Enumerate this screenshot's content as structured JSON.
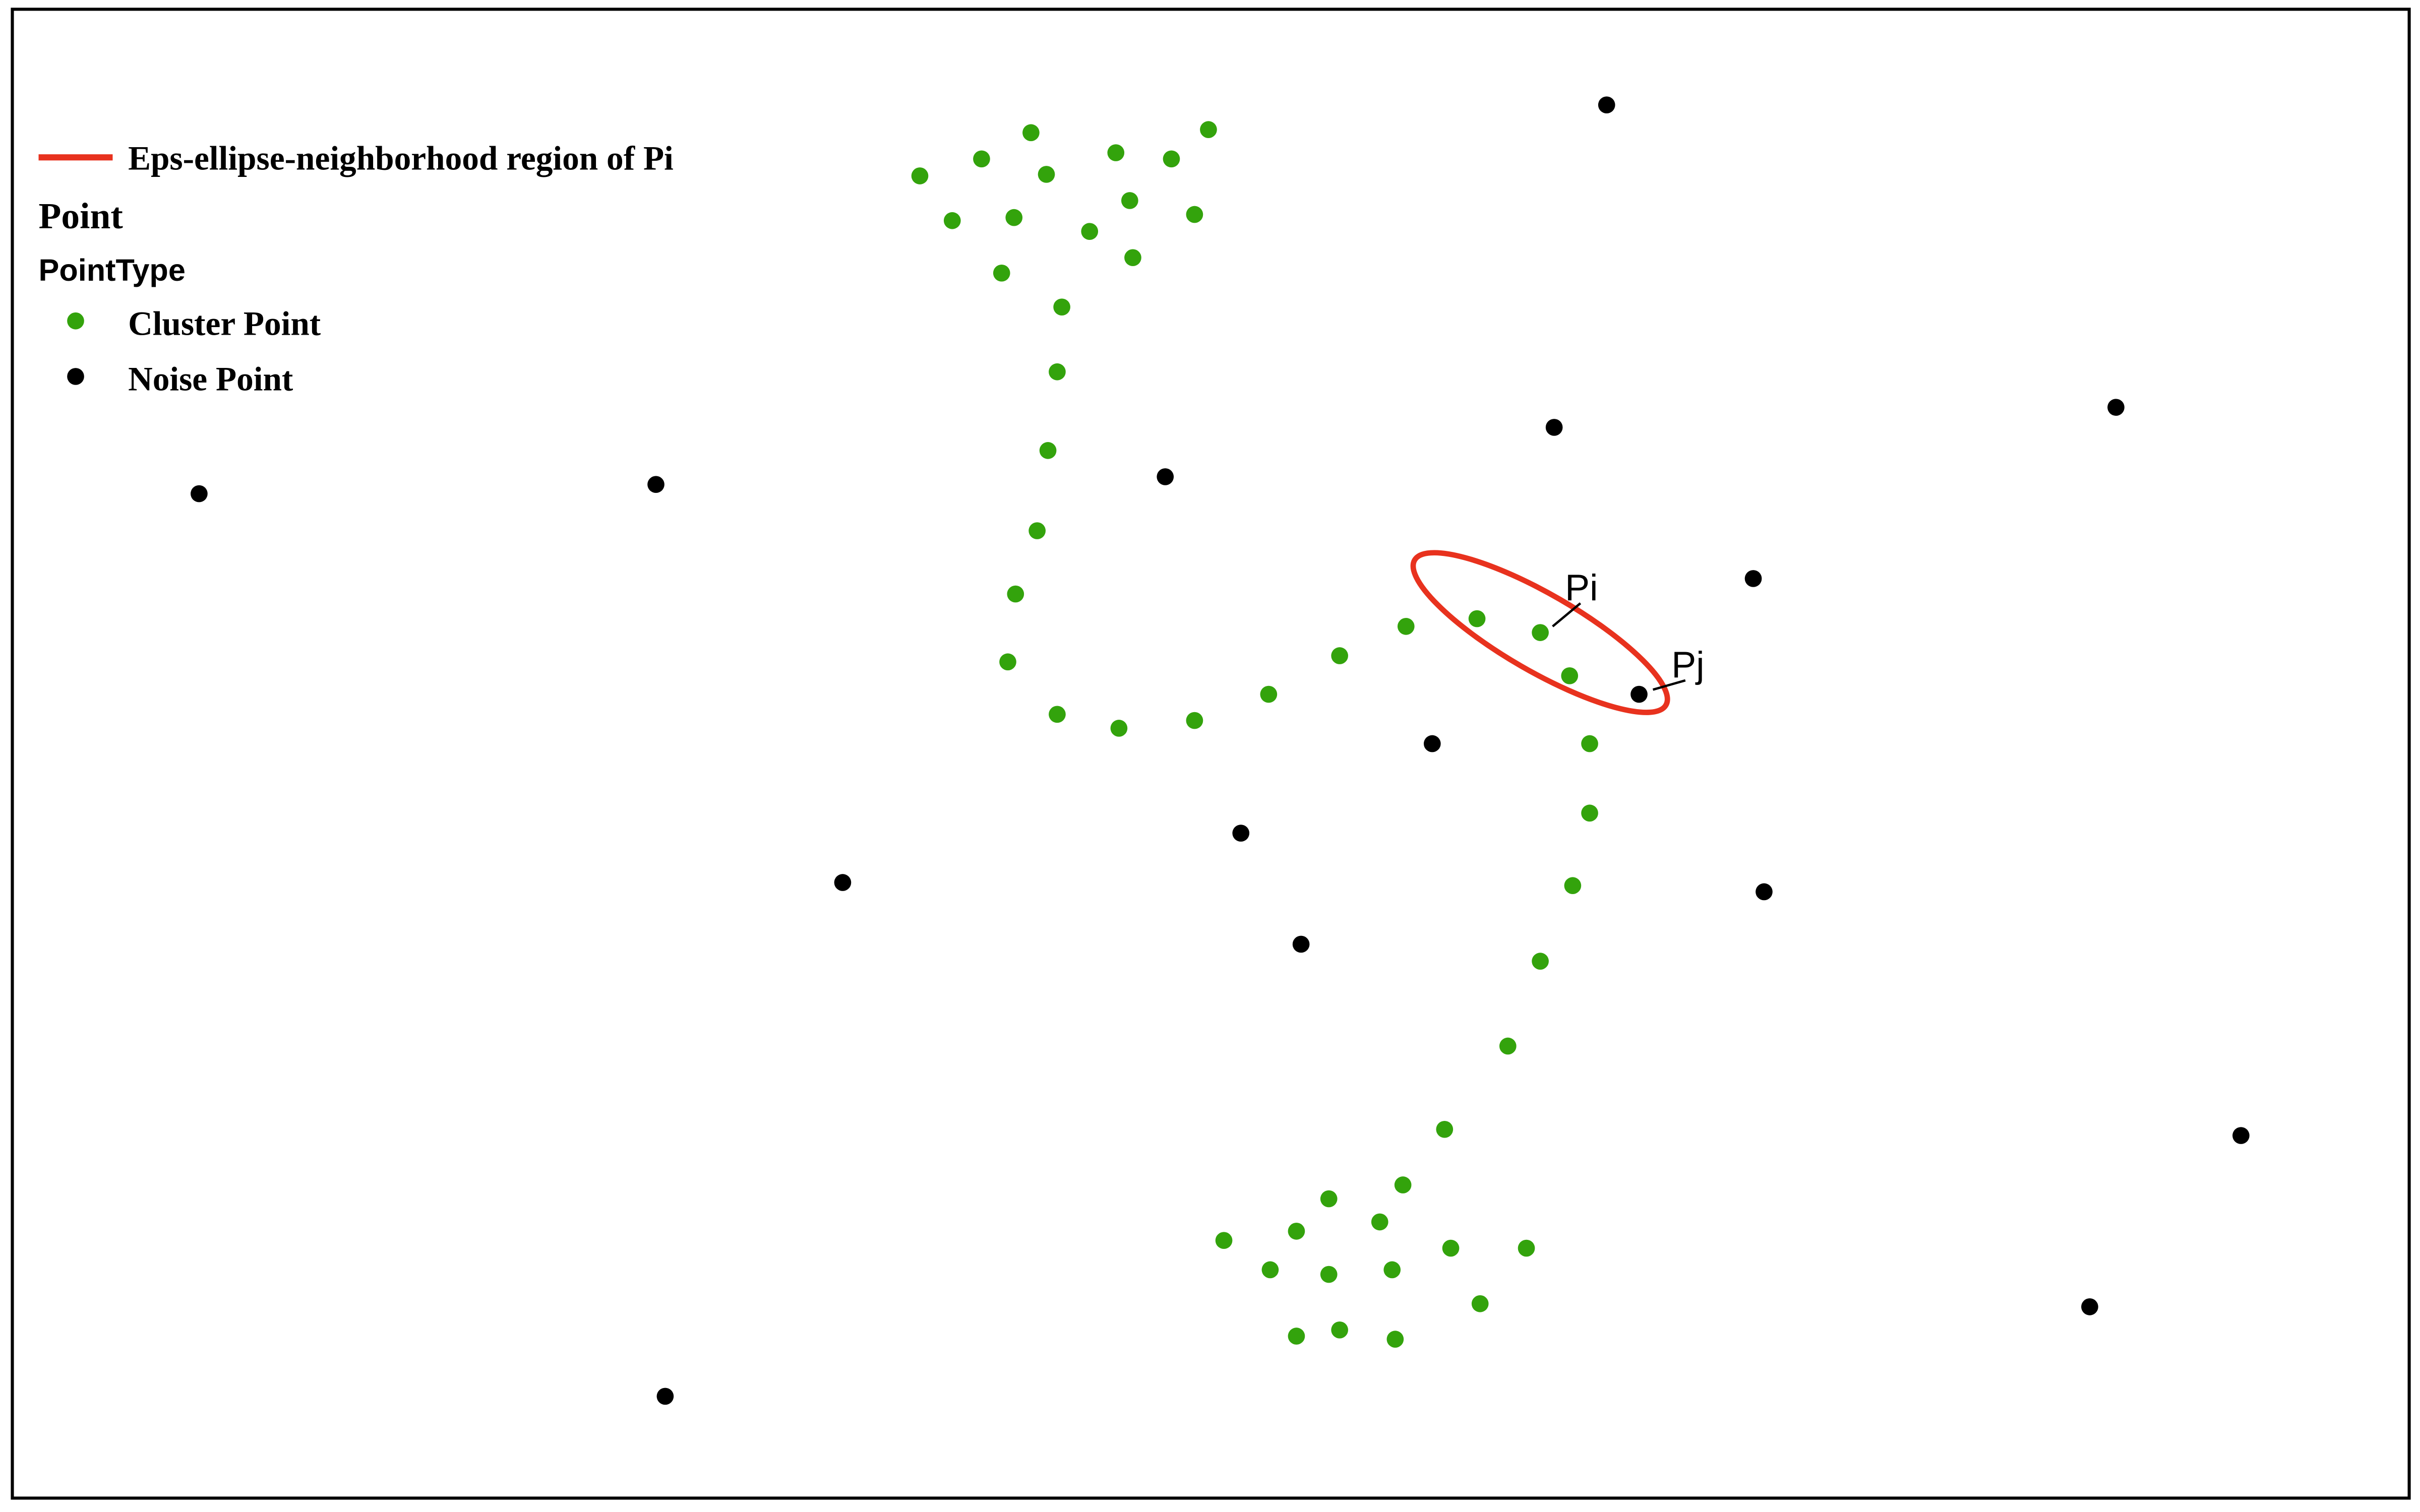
{
  "legend": {
    "region_label": "Eps-ellipse-neighborhood region of Pi",
    "point_title": "Point",
    "pointtype_title": "PointType",
    "cluster_label": "Cluster Point",
    "noise_label": "Noise Point"
  },
  "annotations": {
    "pi": "Pi",
    "pj": "Pj"
  },
  "colors": {
    "cluster": "#33a30c",
    "noise": "#000000",
    "ellipse": "#e8321e",
    "frame": "#000000"
  },
  "cluster_points": [
    [
      596,
      114
    ],
    [
      636,
      103
    ],
    [
      668,
      86
    ],
    [
      678,
      113
    ],
    [
      723,
      99
    ],
    [
      759,
      103
    ],
    [
      783,
      84
    ],
    [
      617,
      143
    ],
    [
      657,
      141
    ],
    [
      706,
      150
    ],
    [
      732,
      130
    ],
    [
      774,
      139
    ],
    [
      649,
      177
    ],
    [
      734,
      167
    ],
    [
      688,
      199
    ],
    [
      685,
      241
    ],
    [
      679,
      292
    ],
    [
      672,
      344
    ],
    [
      658,
      385
    ],
    [
      653,
      429
    ],
    [
      685,
      463
    ],
    [
      725,
      472
    ],
    [
      774,
      467
    ],
    [
      822,
      450
    ],
    [
      868,
      425
    ],
    [
      911,
      406
    ],
    [
      957,
      401
    ],
    [
      998,
      410
    ],
    [
      1017,
      438
    ],
    [
      1030,
      482
    ],
    [
      1030,
      527
    ],
    [
      1019,
      574
    ],
    [
      998,
      623
    ],
    [
      977,
      678
    ],
    [
      936,
      732
    ],
    [
      909,
      768
    ],
    [
      861,
      777
    ],
    [
      894,
      792
    ],
    [
      840,
      798
    ],
    [
      793,
      804
    ],
    [
      940,
      809
    ],
    [
      989,
      809
    ],
    [
      823,
      823
    ],
    [
      861,
      826
    ],
    [
      902,
      823
    ],
    [
      959,
      845
    ],
    [
      868,
      862
    ],
    [
      840,
      866
    ],
    [
      904,
      868
    ]
  ],
  "noise_points": [
    [
      1041,
      68
    ],
    [
      1007,
      277
    ],
    [
      1371,
      264
    ],
    [
      129,
      320
    ],
    [
      425,
      314
    ],
    [
      755,
      309
    ],
    [
      1136,
      375
    ],
    [
      1062,
      450
    ],
    [
      928,
      482
    ],
    [
      804,
      540
    ],
    [
      546,
      572
    ],
    [
      1143,
      578
    ],
    [
      843,
      612
    ],
    [
      1452,
      736
    ],
    [
      1354,
      847
    ],
    [
      431,
      905
    ]
  ]
}
